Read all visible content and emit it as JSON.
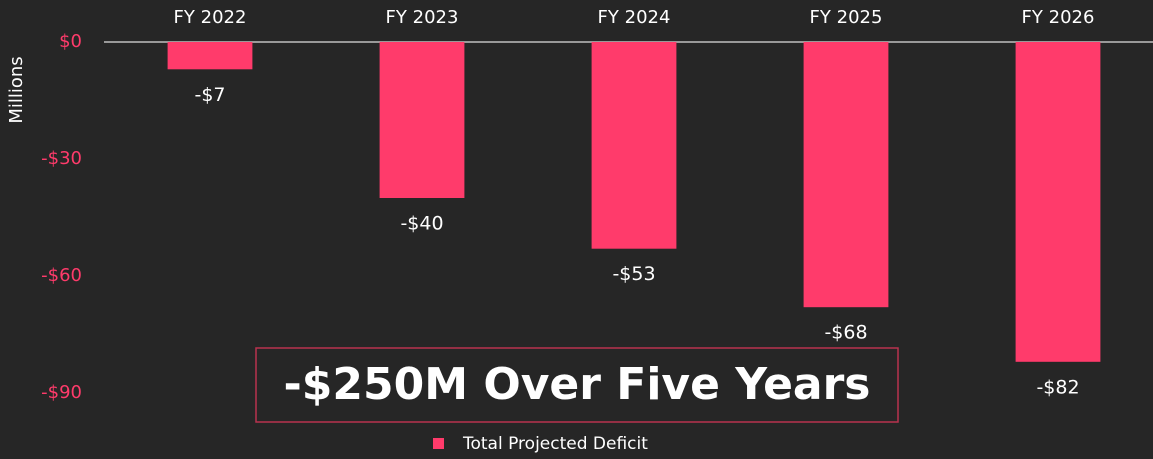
{
  "chart_data": {
    "type": "bar",
    "y_axis_label": "Millions",
    "annotation": "-$250M Over Five Years",
    "categories": [
      "FY 2022",
      "FY 2023",
      "FY 2024",
      "FY 2025",
      "FY 2026"
    ],
    "series": [
      {
        "name": "Total Projected Deficit",
        "color": "#ff3b6b",
        "values": [
          -7,
          -40,
          -53,
          -68,
          -82
        ],
        "value_labels": [
          "-$7",
          "-$40",
          "-$53",
          "-$68",
          "-$82"
        ]
      }
    ],
    "ylim": [
      -95,
      0
    ],
    "yticks": [
      {
        "value": 0,
        "label": "$0"
      },
      {
        "value": -30,
        "label": "-$30"
      },
      {
        "value": -60,
        "label": "-$60"
      },
      {
        "value": -90,
        "label": "-$90"
      }
    ],
    "legend": "bottom"
  }
}
